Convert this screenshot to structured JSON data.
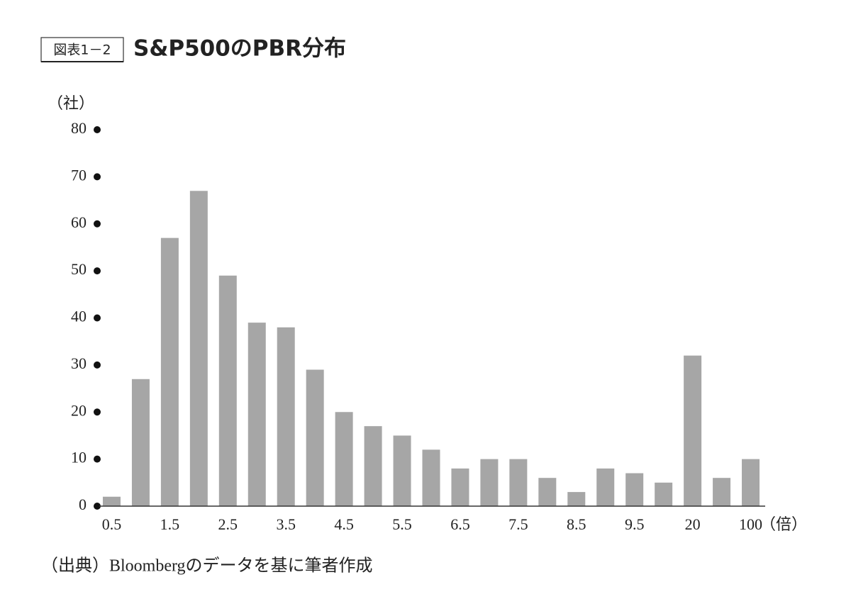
{
  "chart_data": {
    "type": "bar",
    "figure_label": "図表1－2",
    "title": "S&P500のPBR分布",
    "y_label": "（社）",
    "x_label": "（倍）",
    "source": "（出典）Bloombergのデータを基に筆者作成",
    "categories": [
      "0.5",
      null,
      "1.5",
      null,
      "2.5",
      null,
      "3.5",
      null,
      "4.5",
      null,
      "5.5",
      null,
      "6.5",
      null,
      "7.5",
      null,
      "8.5",
      null,
      "9.5",
      null,
      "20",
      null,
      "100"
    ],
    "values": [
      2,
      27,
      57,
      67,
      49,
      39,
      38,
      29,
      20,
      17,
      15,
      12,
      8,
      10,
      10,
      6,
      3,
      8,
      7,
      5,
      32,
      6,
      10
    ],
    "color": "#a6a6a6",
    "ylim": [
      0,
      80
    ],
    "yticks": [
      0,
      10,
      20,
      30,
      40,
      50,
      60,
      70,
      80
    ],
    "grid": false
  }
}
